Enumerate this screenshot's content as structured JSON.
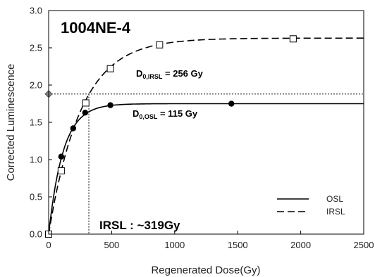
{
  "chart_data": {
    "type": "scatter",
    "title": "1004NE-4",
    "xlabel": "Regenerated Dose(Gy)",
    "ylabel": "Corrected Luminescence",
    "xlim": [
      0,
      2500
    ],
    "ylim": [
      0.0,
      3.0
    ],
    "x_ticks": [
      0,
      500,
      1000,
      1500,
      2000,
      2500
    ],
    "x_tick_labels": [
      "0",
      "500",
      "1000",
      "1500",
      "2000",
      "2500"
    ],
    "y_ticks": [
      0.0,
      0.5,
      1.0,
      1.5,
      2.0,
      2.5,
      3.0
    ],
    "y_tick_labels": [
      "0.0",
      "0.5",
      "1.0",
      "1.5",
      "2.0",
      "2.5",
      "3.0"
    ],
    "grid": false,
    "legend_position": "bottom-right",
    "series": [
      {
        "name": "OSL",
        "line_style": "solid",
        "marker": "filled-circle",
        "color": "#000000",
        "points": [
          [
            0,
            0.0
          ],
          [
            100,
            1.04
          ],
          [
            195,
            1.42
          ],
          [
            290,
            1.63
          ],
          [
            490,
            1.73
          ],
          [
            1450,
            1.75
          ]
        ],
        "fit": {
          "a": 1.75,
          "d0": 115
        }
      },
      {
        "name": "IRSL",
        "line_style": "dashed",
        "marker": "open-square",
        "color": "#000000",
        "points": [
          [
            0,
            0.0
          ],
          [
            100,
            0.85
          ],
          [
            295,
            1.76
          ],
          [
            490,
            2.22
          ],
          [
            880,
            2.54
          ],
          [
            1940,
            2.62
          ]
        ],
        "fit": {
          "a": 2.63,
          "d0": 256
        }
      }
    ],
    "natural_signal": {
      "y": 1.88,
      "marker": "diamond",
      "color": "#808080",
      "equivalent_dose": 319
    },
    "annotations": {
      "d0_irsl": {
        "main": "D",
        "sub": "0,IRSL",
        "value": " = 256 Gy"
      },
      "d0_osl": {
        "main": "D",
        "sub": "0,OSL",
        "value": " = 115 Gy"
      },
      "result": "IRSL : ~319Gy"
    }
  }
}
